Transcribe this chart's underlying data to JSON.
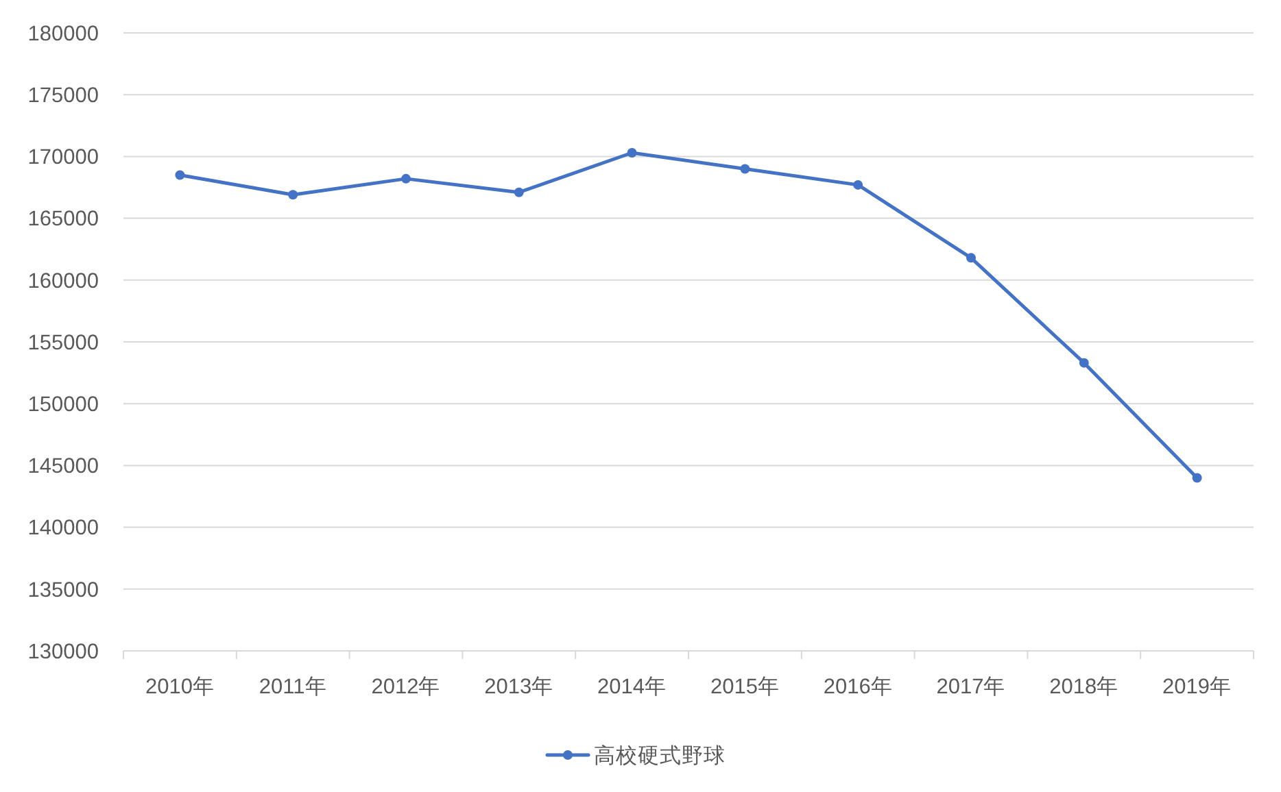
{
  "chart_data": {
    "type": "line",
    "categories": [
      "2010年",
      "2011年",
      "2012年",
      "2013年",
      "2014年",
      "2015年",
      "2016年",
      "2017年",
      "2018年",
      "2019年"
    ],
    "series": [
      {
        "name": "高校硬式野球",
        "color": "#4472c4",
        "values": [
          168500,
          166900,
          168200,
          167100,
          170300,
          169000,
          167700,
          161800,
          153300,
          144000
        ]
      }
    ],
    "ylim": [
      130000,
      180000
    ],
    "yticks": [
      130000,
      135000,
      140000,
      145000,
      150000,
      155000,
      160000,
      165000,
      170000,
      175000,
      180000
    ],
    "grid": "y",
    "legend": "bottom",
    "marker": "circle",
    "line_style": "solid"
  }
}
